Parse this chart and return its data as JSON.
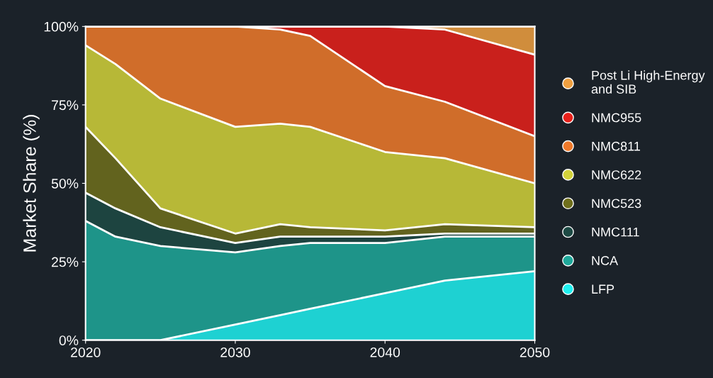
{
  "chart_data": {
    "type": "area",
    "stacked": true,
    "ylabel": "Market Share (%)",
    "x": [
      2020,
      2022,
      2025,
      2030,
      2033,
      2035,
      2040,
      2044,
      2050
    ],
    "xlim": [
      2020,
      2050
    ],
    "xticks": [
      2020,
      2030,
      2040,
      2050
    ],
    "ylim": [
      0,
      100
    ],
    "yticks": [
      {
        "value": 0,
        "label": "0%"
      },
      {
        "value": 25,
        "label": "25%"
      },
      {
        "value": 50,
        "label": "50%"
      },
      {
        "value": 75,
        "label": "75%"
      },
      {
        "value": 100,
        "label": "100%"
      }
    ],
    "grid": false,
    "legend": "right",
    "series": [
      {
        "name": "LFP",
        "color": "#1ff0f0",
        "values": [
          0,
          0,
          0,
          5,
          8,
          10,
          15,
          19,
          22
        ]
      },
      {
        "name": "NCA",
        "color": "#1fa89a",
        "values": [
          38,
          33,
          30,
          23,
          22,
          21,
          16,
          14,
          11
        ]
      },
      {
        "name": "NMC111",
        "color": "#1d4a44",
        "values": [
          9,
          9,
          6,
          3,
          3,
          2,
          2,
          1,
          1
        ]
      },
      {
        "name": "NMC523",
        "color": "#6f6f1c",
        "values": [
          21,
          16,
          6,
          3,
          4,
          3,
          2,
          3,
          2
        ]
      },
      {
        "name": "NMC622",
        "color": "#d2d23a",
        "values": [
          26,
          30,
          35,
          34,
          32,
          32,
          25,
          21,
          14
        ]
      },
      {
        "name": "NMC811",
        "color": "#f07a2a",
        "values": [
          6,
          12,
          23,
          32,
          30,
          29,
          21,
          18,
          15
        ]
      },
      {
        "name": "NMC955",
        "color": "#e8201a",
        "values": [
          0,
          0,
          0,
          0,
          1,
          3,
          19,
          23,
          26
        ]
      },
      {
        "name": "Post Li High-Energy\nand SIB",
        "color": "#f0a040",
        "values": [
          0,
          0,
          0,
          0,
          0,
          0,
          0,
          1,
          9
        ]
      }
    ]
  }
}
